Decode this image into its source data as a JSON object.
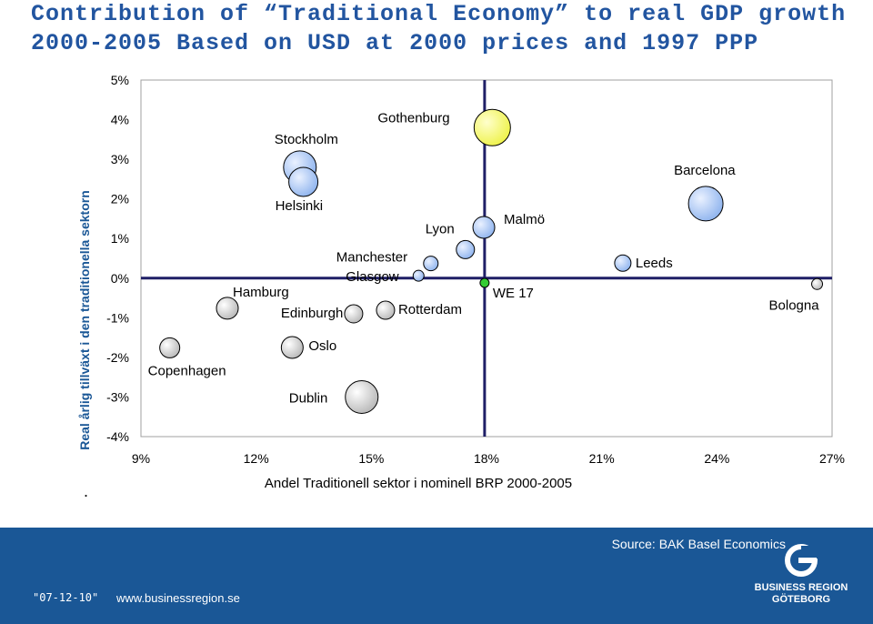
{
  "title": {
    "line1": "Contribution of “Traditional Economy” to real GDP growth",
    "line2": "2000-2005 Based on USD at 2000 prices and 1997 PPP"
  },
  "colors": {
    "title": "#2255a0",
    "bubble": "#8fb4ee",
    "highlight_bubble": "#eef24a",
    "we17_dot": "#33cc33",
    "reference_line": "#1f1f66",
    "footer": "#1a5796"
  },
  "chart_data": {
    "type": "scatter",
    "xlabel": "Andel Traditionell sektor i nominell BRP 2000-2005",
    "ylabel": "Real årlig tillväxt i den traditionella sektorn",
    "xlim": [
      0.09,
      0.27
    ],
    "ylim": [
      -0.04,
      0.05
    ],
    "x_ticks": [
      "9%",
      "12%",
      "15%",
      "18%",
      "21%",
      "24%",
      "27%"
    ],
    "y_ticks": [
      "5%",
      "4%",
      "3%",
      "2%",
      "1%",
      "0%",
      "-1%",
      "-2%",
      "-3%",
      "-4%"
    ],
    "grid": false,
    "reference_lines": {
      "x": 0.1795,
      "y": 0.0
    },
    "points": [
      {
        "label": "Copenhagen",
        "x": 0.0975,
        "y": -0.0176,
        "size": 11,
        "color": "white"
      },
      {
        "label": "Hamburg",
        "x": 0.1125,
        "y": -0.0076,
        "size": 12,
        "color": "white"
      },
      {
        "label": "Stockholm",
        "x": 0.1314,
        "y": 0.028,
        "size": 18,
        "color": "blue"
      },
      {
        "label": "Helsinki",
        "x": 0.1323,
        "y": 0.0243,
        "size": 16,
        "color": "blue"
      },
      {
        "label": "Oslo",
        "x": 0.1294,
        "y": -0.0175,
        "size": 12,
        "color": "white"
      },
      {
        "label": "Edinburgh",
        "x": 0.1454,
        "y": -0.009,
        "size": 10,
        "color": "white"
      },
      {
        "label": "Dublin",
        "x": 0.1475,
        "y": -0.03,
        "size": 18,
        "color": "white"
      },
      {
        "label": "Rotterdam",
        "x": 0.1537,
        "y": -0.0081,
        "size": 10,
        "color": "white"
      },
      {
        "label": "Manchester",
        "x": 0.1655,
        "y": 0.0037,
        "size": 8,
        "color": "blue"
      },
      {
        "label": "Glasgow",
        "x": 0.1623,
        "y": 0.0006,
        "size": 6,
        "color": "blue"
      },
      {
        "label": "Lyon",
        "x": 0.1745,
        "y": 0.0072,
        "size": 10,
        "color": "blue"
      },
      {
        "label": "Gothenburg",
        "x": 0.1815,
        "y": 0.038,
        "size": 20,
        "color": "yellow"
      },
      {
        "label": "Malmö",
        "x": 0.1793,
        "y": 0.0128,
        "size": 12,
        "color": "blue"
      },
      {
        "label": "WE 17",
        "x": 0.1795,
        "y": -0.0012,
        "size": 5,
        "color": "green"
      },
      {
        "label": "Leeds",
        "x": 0.2155,
        "y": 0.0038,
        "size": 9,
        "color": "blue"
      },
      {
        "label": "Barcelona",
        "x": 0.2371,
        "y": 0.0188,
        "size": 19,
        "color": "blue"
      },
      {
        "label": "Bologna",
        "x": 0.2661,
        "y": -0.0015,
        "size": 6,
        "color": "white"
      }
    ]
  },
  "footer": {
    "source": "Source: BAK Basel Economics",
    "date": "\"07-12-10\"",
    "website": "www.businessregion.se",
    "logo_line1": "BUSINESS REGION",
    "logo_line2": "GÖTEBORG"
  }
}
